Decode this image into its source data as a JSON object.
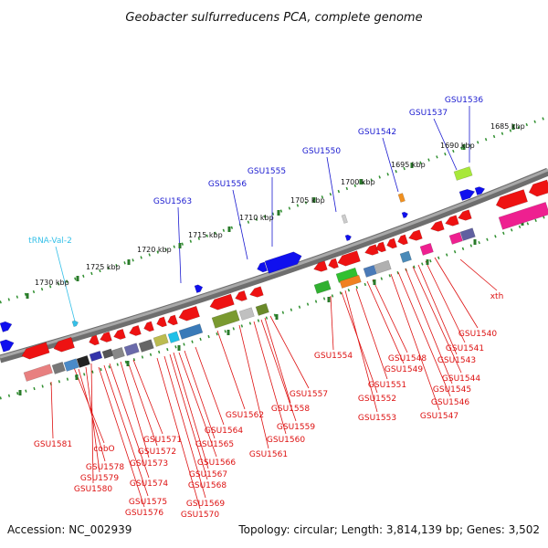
{
  "title": "Geobacter sulfurreducens PCA, complete genome",
  "footer": {
    "accession": "Accession: NC_002939",
    "summary": "Topology: circular; Length: 3,814,139 bp; Genes: 3,502"
  },
  "colors": {
    "backbone": "#888888",
    "scale_dots": "#2f8f2f",
    "tick": "#2a7a2a",
    "upper_label": "#1a1ad0",
    "lower_label": "#dd1111",
    "trna_label": "#35c0e8",
    "forward_gene": "#1010ee",
    "reverse_gene": "#ee1010"
  },
  "scale_ticks": [
    "1730 kbp",
    "1725 kbp",
    "1720 kbp",
    "1715 kbp",
    "1710 kbp",
    "1705 kbp",
    "1700 kbp",
    "1695 kbp",
    "1690 kbp",
    "1685 kbp"
  ],
  "upper_labels": [
    "tRNA-Val-2",
    "GSU1563",
    "GSU1556",
    "GSU1555",
    "GSU1550",
    "GSU1542",
    "GSU1537",
    "GSU1536"
  ],
  "lower_labels": [
    "GSU1581",
    "cobO",
    "GSU1578",
    "GSU1579",
    "GSU1580",
    "GSU1571",
    "GSU1572",
    "GSU1573",
    "GSU1574",
    "GSU1575",
    "GSU1576",
    "GSU1565",
    "GSU1566",
    "GSU1567",
    "GSU1568",
    "GSU1569",
    "GSU1570",
    "GSU1564",
    "GSU1562",
    "GSU1561",
    "GSU1560",
    "GSU1559",
    "GSU1558",
    "GSU1557",
    "GSU1554",
    "GSU1553",
    "GSU1552",
    "GSU1551",
    "GSU1549",
    "GSU1548",
    "GSU1547",
    "GSU1546",
    "GSU1545",
    "GSU1544",
    "GSU1543",
    "GSU1541",
    "GSU1540",
    "xth"
  ]
}
